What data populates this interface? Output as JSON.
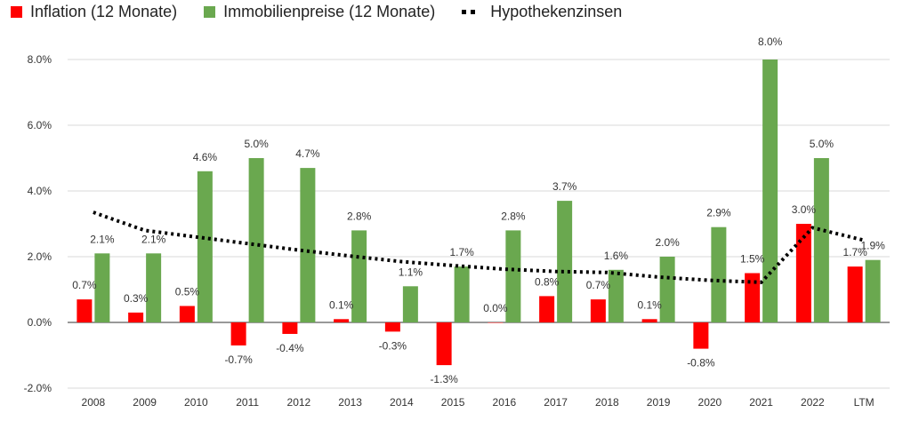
{
  "legend": {
    "inflation": "Inflation (12 Monate)",
    "immobilien": "Immobilienpreise (12 Monate)",
    "hypothek": "Hypothekenzinsen"
  },
  "colors": {
    "inflation": "#ff0000",
    "immobilien": "#6aa84f",
    "hypothek": "#000000",
    "grid": "#d9d9d9",
    "axis": "#333333"
  },
  "chart_data": {
    "type": "bar",
    "categories": [
      "2008",
      "2009",
      "2010",
      "2011",
      "2012",
      "2013",
      "2014",
      "2015",
      "2016",
      "2017",
      "2018",
      "2019",
      "2020",
      "2021",
      "2022",
      "LTM"
    ],
    "series": [
      {
        "name": "Inflation (12 Monate)",
        "type": "bar",
        "values": [
          0.7,
          0.3,
          0.5,
          -0.7,
          -0.35,
          0.1,
          -0.28,
          -1.3,
          0.0,
          0.8,
          0.7,
          0.1,
          -0.8,
          1.5,
          3.0,
          1.7
        ],
        "labels": [
          "0.7%",
          "0.3%",
          "0.5%",
          "-0.7%",
          "-0.4%",
          "0.1%",
          "-0.3%",
          "-1.3%",
          "0.0%",
          "0.8%",
          "0.7%",
          "0.1%",
          "-0.8%",
          "1.5%",
          "3.0%",
          "1.7%"
        ]
      },
      {
        "name": "Immobilienpreise (12 Monate)",
        "type": "bar",
        "values": [
          2.1,
          2.1,
          4.6,
          5.0,
          4.7,
          2.8,
          1.1,
          1.7,
          2.8,
          3.7,
          1.6,
          2.0,
          2.9,
          8.0,
          5.0,
          1.9
        ],
        "labels": [
          "2.1%",
          "2.1%",
          "4.6%",
          "5.0%",
          "4.7%",
          "2.8%",
          "1.1%",
          "1.7%",
          "2.8%",
          "3.7%",
          "1.6%",
          "2.0%",
          "2.9%",
          "8.0%",
          "5.0%",
          "1.9%"
        ]
      },
      {
        "name": "Hypothekenzinsen",
        "type": "line",
        "style": "dotted",
        "values": [
          3.35,
          2.8,
          2.6,
          2.4,
          2.2,
          2.02,
          1.85,
          1.73,
          1.62,
          1.55,
          1.52,
          1.38,
          1.28,
          1.22,
          2.88,
          2.5
        ]
      }
    ],
    "ylim": [
      -2,
      8
    ],
    "yticks": [
      -2,
      0,
      2,
      4,
      6,
      8
    ],
    "ytick_labels": [
      "-2.0%",
      "0.0%",
      "2.0%",
      "4.0%",
      "6.0%",
      "8.0%"
    ],
    "grid": true,
    "legend_position": "top-left",
    "title": "",
    "xlabel": "",
    "ylabel": ""
  }
}
